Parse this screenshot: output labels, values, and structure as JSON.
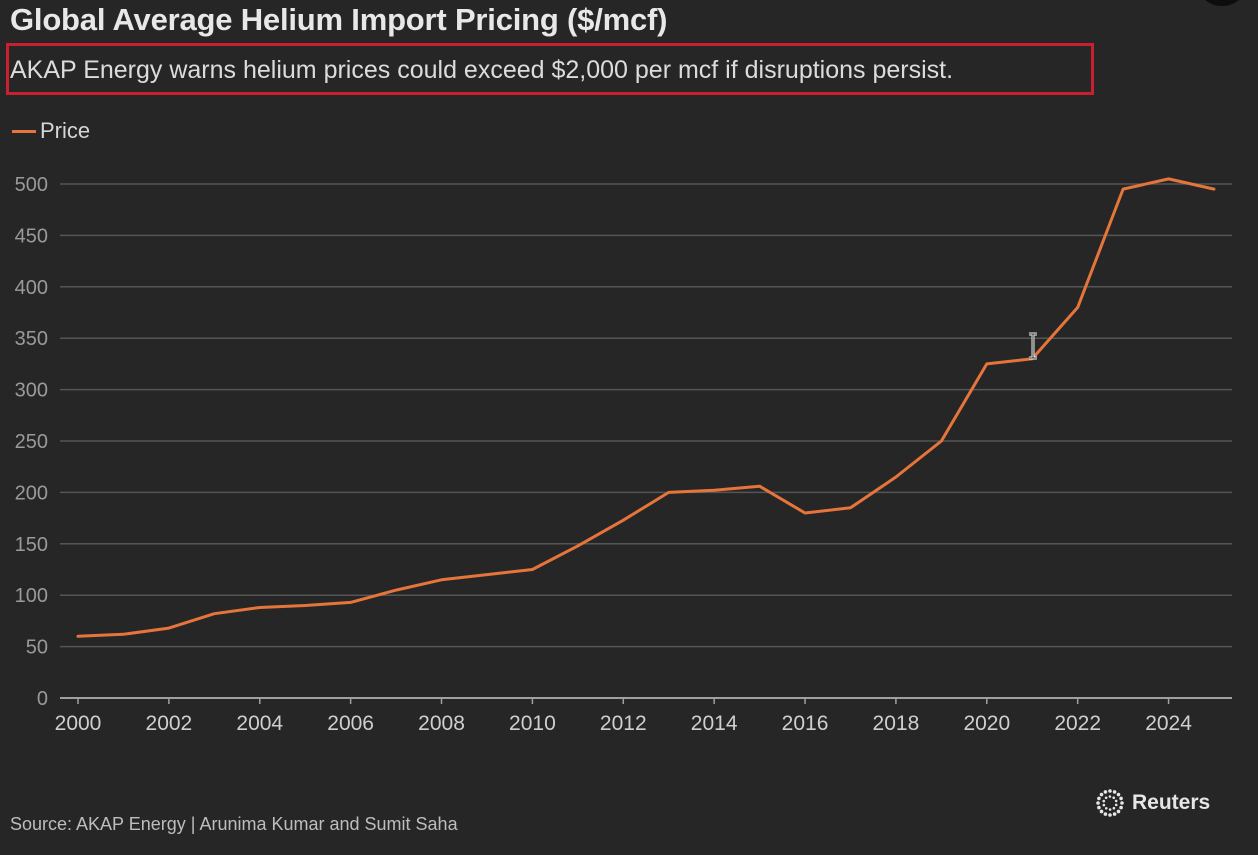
{
  "title": "Global Average Helium Import Pricing ($/mcf)",
  "subtitle": "AKAP Energy warns helium prices could exceed $2,000 per mcf if disruptions persist.",
  "source": "Source: AKAP Energy | Arunima Kumar and Sumit Saha",
  "brand": "Reuters",
  "colors": {
    "background": "#262626",
    "line": "#e5753a",
    "highlight_box": "#c8202e",
    "grid": "#555555"
  },
  "chart_data": {
    "type": "line",
    "title": "Global Average Helium Import Pricing ($/mcf)",
    "xlabel": "",
    "ylabel": "",
    "legend": "top-left",
    "grid": true,
    "ylim": [
      0,
      500
    ],
    "xlim": [
      2000,
      2025
    ],
    "y_ticks": [
      "0",
      "50",
      "100",
      "150",
      "200",
      "250",
      "300",
      "350",
      "400",
      "450",
      "500"
    ],
    "x_ticks": [
      "2000",
      "2002",
      "2004",
      "2006",
      "2008",
      "2010",
      "2012",
      "2014",
      "2016",
      "2018",
      "2020",
      "2022",
      "2024"
    ],
    "series": [
      {
        "name": "Price",
        "x": [
          2000,
          2001,
          2002,
          2003,
          2004,
          2005,
          2006,
          2007,
          2008,
          2009,
          2010,
          2011,
          2012,
          2013,
          2014,
          2015,
          2016,
          2017,
          2018,
          2019,
          2020,
          2021,
          2022,
          2023,
          2024,
          2025
        ],
        "values": [
          60,
          62,
          68,
          82,
          88,
          90,
          93,
          105,
          115,
          120,
          125,
          148,
          173,
          200,
          202,
          206,
          180,
          185,
          215,
          250,
          325,
          330,
          380,
          495,
          505,
          495
        ]
      }
    ]
  }
}
